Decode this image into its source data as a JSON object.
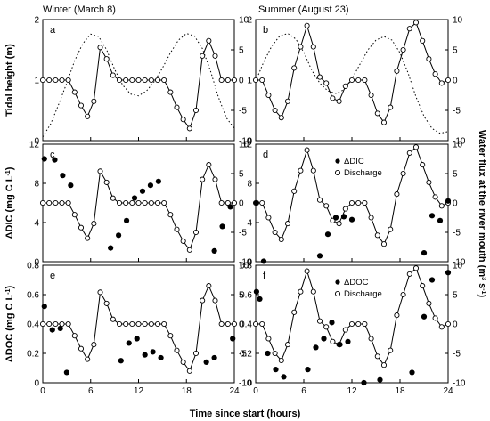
{
  "figure": {
    "column_titles": [
      "Winter (March 8)",
      "Summer (August 23)"
    ],
    "xlabel": "Time since start (hours)",
    "right_ylabel_main": "Water flux at the river mouth (m",
    "right_ylabel_sup": "3",
    "right_ylabel_mid": " s",
    "right_ylabel_sup2": "-1",
    "right_ylabel_end": ")",
    "legend_dic": [
      "ΔDIC",
      "Discharge"
    ],
    "legend_doc": [
      "ΔDOC",
      "Discharge"
    ]
  },
  "chart_data": [
    {
      "panel": "a",
      "type": "line",
      "row": 0,
      "col": 0,
      "ylabel": "Tidal height (m)",
      "ylim": [
        0,
        2
      ],
      "yticks": [
        0,
        1,
        2
      ],
      "xlim": [
        0,
        24
      ],
      "xticks": [
        0,
        6,
        12,
        18,
        24
      ],
      "y2lim": [
        -10,
        10
      ],
      "y2ticks": [
        -10,
        -5,
        0,
        5,
        10
      ],
      "tide": [
        [
          0,
          0.06
        ],
        [
          1,
          0.28
        ],
        [
          2,
          0.6
        ],
        [
          3,
          0.95
        ],
        [
          4,
          1.32
        ],
        [
          5,
          1.6
        ],
        [
          6,
          1.76
        ],
        [
          7,
          1.72
        ],
        [
          8,
          1.5
        ],
        [
          9,
          1.18
        ],
        [
          10,
          0.92
        ],
        [
          11,
          0.77
        ],
        [
          12,
          0.74
        ],
        [
          13,
          0.82
        ],
        [
          14,
          0.98
        ],
        [
          15,
          1.2
        ],
        [
          16,
          1.45
        ],
        [
          17,
          1.66
        ],
        [
          18,
          1.77
        ],
        [
          19,
          1.73
        ],
        [
          20,
          1.52
        ],
        [
          21,
          1.16
        ],
        [
          22,
          0.72
        ],
        [
          23,
          0.38
        ],
        [
          24,
          0.2
        ]
      ],
      "discharge": [
        [
          0,
          0
        ],
        [
          0.8,
          0
        ],
        [
          1.6,
          0
        ],
        [
          2.4,
          0
        ],
        [
          3.2,
          0
        ],
        [
          4.0,
          -2
        ],
        [
          4.8,
          -4.2
        ],
        [
          5.6,
          -6
        ],
        [
          6.4,
          -3.5
        ],
        [
          7.2,
          5.4
        ],
        [
          8.0,
          3.5
        ],
        [
          8.8,
          0.8
        ],
        [
          9.6,
          0
        ],
        [
          10.4,
          0
        ],
        [
          11.2,
          0
        ],
        [
          12.0,
          0
        ],
        [
          12.8,
          0
        ],
        [
          13.6,
          0
        ],
        [
          14.4,
          0
        ],
        [
          15.2,
          0
        ],
        [
          16.0,
          -2
        ],
        [
          16.8,
          -4.5
        ],
        [
          17.6,
          -6.5
        ],
        [
          18.4,
          -8
        ],
        [
          19.2,
          -5
        ],
        [
          20.0,
          4
        ],
        [
          20.8,
          6.5
        ],
        [
          21.6,
          4
        ],
        [
          22.4,
          0
        ],
        [
          23.2,
          0
        ],
        [
          24,
          0
        ]
      ]
    },
    {
      "panel": "b",
      "type": "line",
      "row": 0,
      "col": 1,
      "ylim": [
        0,
        2
      ],
      "yticks": [
        0,
        1,
        2
      ],
      "xlim": [
        0,
        24
      ],
      "xticks": [
        0,
        6,
        12,
        18,
        24
      ],
      "y2lim": [
        -10,
        10
      ],
      "y2ticks": [
        -10,
        -5,
        0,
        5,
        10
      ],
      "tide": [
        [
          0,
          0.98
        ],
        [
          1,
          1.3
        ],
        [
          2,
          1.56
        ],
        [
          3,
          1.73
        ],
        [
          4,
          1.77
        ],
        [
          5,
          1.68
        ],
        [
          6,
          1.46
        ],
        [
          7,
          1.16
        ],
        [
          8,
          0.95
        ],
        [
          9,
          0.82
        ],
        [
          10,
          0.78
        ],
        [
          11,
          0.84
        ],
        [
          12,
          1.02
        ],
        [
          13,
          1.26
        ],
        [
          14,
          1.5
        ],
        [
          15,
          1.66
        ],
        [
          16,
          1.72
        ],
        [
          17,
          1.66
        ],
        [
          18,
          1.45
        ],
        [
          19,
          1.12
        ],
        [
          20,
          0.72
        ],
        [
          21,
          0.4
        ],
        [
          22,
          0.2
        ],
        [
          23,
          0.12
        ],
        [
          24,
          0.15
        ]
      ],
      "discharge": [
        [
          0,
          0
        ],
        [
          0.8,
          0
        ],
        [
          1.6,
          -2.5
        ],
        [
          2.4,
          -5
        ],
        [
          3.2,
          -6.2
        ],
        [
          4.0,
          -3.5
        ],
        [
          4.8,
          2
        ],
        [
          5.6,
          5.5
        ],
        [
          6.4,
          9
        ],
        [
          7.2,
          5.5
        ],
        [
          8.0,
          0.5
        ],
        [
          8.8,
          -0.5
        ],
        [
          9.6,
          -3
        ],
        [
          10.4,
          -3.5
        ],
        [
          11.2,
          -1
        ],
        [
          12.0,
          0
        ],
        [
          12.8,
          0
        ],
        [
          13.6,
          0
        ],
        [
          14.4,
          -2.5
        ],
        [
          15.2,
          -5.5
        ],
        [
          16.0,
          -7
        ],
        [
          16.8,
          -4.5
        ],
        [
          17.6,
          1.5
        ],
        [
          18.4,
          5
        ],
        [
          19.2,
          8.5
        ],
        [
          20.0,
          9.5
        ],
        [
          20.8,
          6.5
        ],
        [
          21.6,
          3.5
        ],
        [
          22.4,
          1
        ],
        [
          23.2,
          -0.5
        ],
        [
          24,
          0
        ]
      ]
    },
    {
      "panel": "c",
      "type": "scatter",
      "row": 1,
      "col": 0,
      "ylabel": "ΔDIC (mg C L",
      "ylabel_sup": "-1",
      "ylabel_end": ")",
      "ylim": [
        0,
        12
      ],
      "yticks": [
        0,
        4,
        8,
        12
      ],
      "xlim": [
        0,
        24
      ],
      "xticks": [
        0,
        6,
        12,
        18,
        24
      ],
      "y2lim": [
        -10,
        10
      ],
      "y2ticks": [
        -10,
        -5,
        0,
        5,
        10
      ],
      "discharge": [
        [
          0,
          0
        ],
        [
          0.8,
          0
        ],
        [
          1.6,
          0
        ],
        [
          2.4,
          0
        ],
        [
          3.2,
          0
        ],
        [
          4.0,
          -2
        ],
        [
          4.8,
          -4.2
        ],
        [
          5.6,
          -6
        ],
        [
          6.4,
          -3.5
        ],
        [
          7.2,
          5.4
        ],
        [
          8.0,
          3.5
        ],
        [
          8.8,
          0.8
        ],
        [
          9.6,
          0
        ],
        [
          10.4,
          0
        ],
        [
          11.2,
          0
        ],
        [
          12.0,
          0
        ],
        [
          12.8,
          0
        ],
        [
          13.6,
          0
        ],
        [
          14.4,
          0
        ],
        [
          15.2,
          0
        ],
        [
          16.0,
          -2
        ],
        [
          16.8,
          -4.5
        ],
        [
          17.6,
          -6.5
        ],
        [
          18.4,
          -8
        ],
        [
          19.2,
          -5
        ],
        [
          20.0,
          4
        ],
        [
          20.8,
          6.5
        ],
        [
          21.6,
          4
        ],
        [
          22.4,
          0
        ],
        [
          23.2,
          0
        ],
        [
          24,
          0
        ]
      ],
      "series_points": [
        [
          0.2,
          10.5
        ],
        [
          1.5,
          10.4
        ],
        [
          2.5,
          8.8
        ],
        [
          3.5,
          7.8
        ],
        [
          8.5,
          1.4
        ],
        [
          9.5,
          2.7
        ],
        [
          10.5,
          4.2
        ],
        [
          11.5,
          6.5
        ],
        [
          12.5,
          7.2
        ],
        [
          13.5,
          7.8
        ],
        [
          14.5,
          8.2
        ],
        [
          21.5,
          1.1
        ],
        [
          22.5,
          3.6
        ],
        [
          23.5,
          5.6
        ]
      ]
    },
    {
      "panel": "d",
      "type": "scatter",
      "row": 1,
      "col": 1,
      "ylim": [
        0,
        12
      ],
      "yticks": [
        0,
        4,
        8,
        12
      ],
      "xlim": [
        0,
        24
      ],
      "xticks": [
        0,
        6,
        12,
        18,
        24
      ],
      "y2lim": [
        -10,
        10
      ],
      "y2ticks": [
        -10,
        -5,
        0,
        5,
        10
      ],
      "legend": true,
      "legend_kind": "dic",
      "discharge": [
        [
          0,
          0
        ],
        [
          0.8,
          0
        ],
        [
          1.6,
          -2.5
        ],
        [
          2.4,
          -5
        ],
        [
          3.2,
          -6.2
        ],
        [
          4.0,
          -3.5
        ],
        [
          4.8,
          2
        ],
        [
          5.6,
          5.5
        ],
        [
          6.4,
          9
        ],
        [
          7.2,
          5.5
        ],
        [
          8.0,
          0.5
        ],
        [
          8.8,
          -0.5
        ],
        [
          9.6,
          -3
        ],
        [
          10.4,
          -3.5
        ],
        [
          11.2,
          -1
        ],
        [
          12.0,
          0
        ],
        [
          12.8,
          0
        ],
        [
          13.6,
          0
        ],
        [
          14.4,
          -2.5
        ],
        [
          15.2,
          -5.5
        ],
        [
          16.0,
          -7
        ],
        [
          16.8,
          -4.5
        ],
        [
          17.6,
          1.5
        ],
        [
          18.4,
          5
        ],
        [
          19.2,
          8.5
        ],
        [
          20.0,
          9.5
        ],
        [
          20.8,
          6.5
        ],
        [
          21.6,
          3.5
        ],
        [
          22.4,
          1
        ],
        [
          23.2,
          -0.5
        ],
        [
          24,
          0
        ]
      ],
      "series_points": [
        [
          0.1,
          6.0
        ],
        [
          1,
          0.05
        ],
        [
          8,
          0.6
        ],
        [
          9,
          2.8
        ],
        [
          10,
          4.5
        ],
        [
          11,
          4.6
        ],
        [
          12,
          4.3
        ],
        [
          21,
          0.9
        ],
        [
          22,
          4.7
        ],
        [
          23,
          4.2
        ],
        [
          24,
          6.2
        ]
      ]
    },
    {
      "panel": "e",
      "type": "scatter",
      "row": 2,
      "col": 0,
      "ylabel": "ΔDOC (mg C L",
      "ylabel_sup": "-1",
      "ylabel_end": ")",
      "ylim": [
        0,
        0.8
      ],
      "yticks": [
        0,
        0.2,
        0.4,
        0.6,
        0.8
      ],
      "xlim": [
        0,
        24
      ],
      "xticks": [
        0,
        6,
        12,
        18,
        24
      ],
      "y2lim": [
        -10,
        10
      ],
      "y2ticks": [
        -10,
        -5,
        0,
        5,
        10
      ],
      "discharge": [
        [
          0,
          0
        ],
        [
          0.8,
          0
        ],
        [
          1.6,
          0
        ],
        [
          2.4,
          0
        ],
        [
          3.2,
          0
        ],
        [
          4.0,
          -2
        ],
        [
          4.8,
          -4.2
        ],
        [
          5.6,
          -6
        ],
        [
          6.4,
          -3.5
        ],
        [
          7.2,
          5.4
        ],
        [
          8.0,
          3.5
        ],
        [
          8.8,
          0.8
        ],
        [
          9.6,
          0
        ],
        [
          10.4,
          0
        ],
        [
          11.2,
          0
        ],
        [
          12.0,
          0
        ],
        [
          12.8,
          0
        ],
        [
          13.6,
          0
        ],
        [
          14.4,
          0
        ],
        [
          15.2,
          0
        ],
        [
          16.0,
          -2
        ],
        [
          16.8,
          -4.5
        ],
        [
          17.6,
          -6.5
        ],
        [
          18.4,
          -8
        ],
        [
          19.2,
          -5
        ],
        [
          20.0,
          4
        ],
        [
          20.8,
          6.5
        ],
        [
          21.6,
          4
        ],
        [
          22.4,
          0
        ],
        [
          23.2,
          0
        ],
        [
          24,
          0
        ]
      ],
      "series_points": [
        [
          0.2,
          0.52
        ],
        [
          1.2,
          0.36
        ],
        [
          2.2,
          0.37
        ],
        [
          3.0,
          0.07
        ],
        [
          9.8,
          0.15
        ],
        [
          10.8,
          0.27
        ],
        [
          11.8,
          0.3
        ],
        [
          12.8,
          0.19
        ],
        [
          13.8,
          0.21
        ],
        [
          14.8,
          0.17
        ],
        [
          20.5,
          0.14
        ],
        [
          21.5,
          0.17
        ],
        [
          23.8,
          0.3
        ]
      ]
    },
    {
      "panel": "f",
      "type": "scatter",
      "row": 2,
      "col": 1,
      "ylim": [
        0,
        0.8
      ],
      "yticks": [
        0,
        0.2,
        0.4,
        0.6,
        0.8
      ],
      "xlim": [
        0,
        24
      ],
      "xticks": [
        0,
        6,
        12,
        18,
        24
      ],
      "y2lim": [
        -10,
        10
      ],
      "y2ticks": [
        -10,
        -5,
        0,
        5,
        10
      ],
      "legend": true,
      "legend_kind": "doc",
      "discharge": [
        [
          0,
          0
        ],
        [
          0.8,
          0
        ],
        [
          1.6,
          -2.5
        ],
        [
          2.4,
          -5
        ],
        [
          3.2,
          -6.2
        ],
        [
          4.0,
          -3.5
        ],
        [
          4.8,
          2
        ],
        [
          5.6,
          5.5
        ],
        [
          6.4,
          9
        ],
        [
          7.2,
          5.5
        ],
        [
          8.0,
          0.5
        ],
        [
          8.8,
          -0.5
        ],
        [
          9.6,
          -3
        ],
        [
          10.4,
          -3.5
        ],
        [
          11.2,
          -1
        ],
        [
          12.0,
          0
        ],
        [
          12.8,
          0
        ],
        [
          13.6,
          0
        ],
        [
          14.4,
          -2.5
        ],
        [
          15.2,
          -5.5
        ],
        [
          16.0,
          -7
        ],
        [
          16.8,
          -4.5
        ],
        [
          17.6,
          1.5
        ],
        [
          18.4,
          5
        ],
        [
          19.2,
          8.5
        ],
        [
          20.0,
          9.5
        ],
        [
          20.8,
          6.5
        ],
        [
          21.6,
          3.5
        ],
        [
          22.4,
          1
        ],
        [
          23.2,
          -0.5
        ],
        [
          24,
          0
        ]
      ],
      "series_points": [
        [
          0.1,
          0.62
        ],
        [
          0.5,
          0.57
        ],
        [
          1.5,
          0.2
        ],
        [
          2.5,
          0.09
        ],
        [
          3.5,
          0.04
        ],
        [
          6.5,
          0.09
        ],
        [
          7.5,
          0.24
        ],
        [
          8.5,
          0.3
        ],
        [
          9.5,
          0.41
        ],
        [
          10.5,
          0.26
        ],
        [
          11.5,
          0.28
        ],
        [
          13.5,
          0.0
        ],
        [
          15.5,
          0.02
        ],
        [
          19.5,
          0.07
        ],
        [
          21,
          0.45
        ],
        [
          22,
          0.7
        ],
        [
          24,
          0.75
        ]
      ]
    }
  ]
}
